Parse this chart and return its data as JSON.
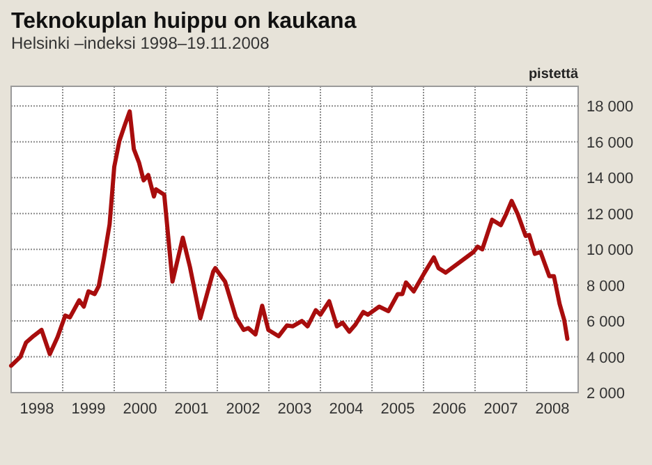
{
  "chart_data": {
    "type": "line",
    "title": "Teknokuplan huippu on kaukana",
    "subtitle": "Helsinki –indeksi 1998–19.11.2008",
    "ylabel": "pistettä",
    "x": [
      1998.0,
      1998.18,
      1998.29,
      1998.41,
      1998.59,
      1998.75,
      1998.9,
      1999.05,
      1999.14,
      1999.32,
      1999.41,
      1999.5,
      1999.62,
      1999.7,
      1999.8,
      1999.91,
      2000.0,
      2000.1,
      2000.2,
      2000.3,
      2000.38,
      2000.48,
      2000.57,
      2000.66,
      2000.77,
      2000.81,
      2000.97,
      2001.13,
      2001.33,
      2001.47,
      2001.67,
      2001.92,
      2001.96,
      2002.15,
      2002.36,
      2002.51,
      2002.6,
      2002.74,
      2002.87,
      2002.99,
      2003.19,
      2003.35,
      2003.46,
      2003.64,
      2003.75,
      2003.91,
      2004.0,
      2004.17,
      2004.32,
      2004.43,
      2004.56,
      2004.68,
      2004.83,
      2004.92,
      2005.14,
      2005.32,
      2005.5,
      2005.59,
      2005.66,
      2005.81,
      2006.0,
      2006.2,
      2006.29,
      2006.43,
      2006.97,
      2007.05,
      2007.14,
      2007.33,
      2007.5,
      2007.6,
      2007.71,
      2007.83,
      2007.98,
      2008.05,
      2008.16,
      2008.27,
      2008.44,
      2008.53,
      2008.64,
      2008.73,
      2008.79
    ],
    "series": [
      {
        "color": "#a80d0d",
        "values": [
          3500,
          4000,
          4800,
          5100,
          5500,
          4150,
          5100,
          6300,
          6200,
          7150,
          6800,
          7650,
          7500,
          7950,
          9500,
          11400,
          14600,
          16050,
          16900,
          17700,
          15600,
          14850,
          13850,
          14150,
          12950,
          13350,
          13050,
          8200,
          10650,
          9000,
          6150,
          8750,
          8950,
          8200,
          6200,
          5500,
          5600,
          5250,
          6850,
          5500,
          5150,
          5750,
          5700,
          6000,
          5700,
          6600,
          6350,
          7100,
          5700,
          5900,
          5400,
          5800,
          6500,
          6350,
          6800,
          6550,
          7500,
          7500,
          8150,
          7650,
          8600,
          9550,
          8950,
          8700,
          9850,
          10150,
          10000,
          11650,
          11350,
          11950,
          12700,
          11950,
          10750,
          10800,
          9750,
          9850,
          8500,
          8500,
          6950,
          6050,
          5000
        ]
      }
    ],
    "xlim": [
      1998,
      2009
    ],
    "xticks": [
      {
        "value": 1999,
        "label": null
      },
      {
        "value": 2000,
        "label": null
      },
      {
        "value": 2001,
        "label": null
      },
      {
        "value": 2002,
        "label": null
      },
      {
        "value": 2003,
        "label": null
      },
      {
        "value": 2004,
        "label": null
      },
      {
        "value": 2005,
        "label": null
      },
      {
        "value": 2006,
        "label": null
      },
      {
        "value": 2007,
        "label": null
      },
      {
        "value": 2008,
        "label": null
      },
      {
        "value": 1998.5,
        "label": "1998"
      },
      {
        "value": 1999.5,
        "label": "1999"
      },
      {
        "value": 2000.5,
        "label": "2000"
      },
      {
        "value": 2001.5,
        "label": "2001"
      },
      {
        "value": 2002.5,
        "label": "2002"
      },
      {
        "value": 2003.5,
        "label": "2003"
      },
      {
        "value": 2004.5,
        "label": "2004"
      },
      {
        "value": 2005.5,
        "label": "2005"
      },
      {
        "value": 2006.5,
        "label": "2006"
      },
      {
        "value": 2007.5,
        "label": "2007"
      },
      {
        "value": 2008.5,
        "label": "2008"
      }
    ],
    "ylim": [
      2000,
      19100
    ],
    "yticks": [
      {
        "value": 2000,
        "label": "2 000"
      },
      {
        "value": 4000,
        "label": "4 000"
      },
      {
        "value": 6000,
        "label": "6 000"
      },
      {
        "value": 8000,
        "label": "8 000"
      },
      {
        "value": 10000,
        "label": "10 000"
      },
      {
        "value": 12000,
        "label": "12 000"
      },
      {
        "value": 14000,
        "label": "14 000"
      },
      {
        "value": 16000,
        "label": "16 000"
      },
      {
        "value": 18000,
        "label": "18 000"
      }
    ],
    "grid": true,
    "marker": "none",
    "line_style": "solid"
  }
}
